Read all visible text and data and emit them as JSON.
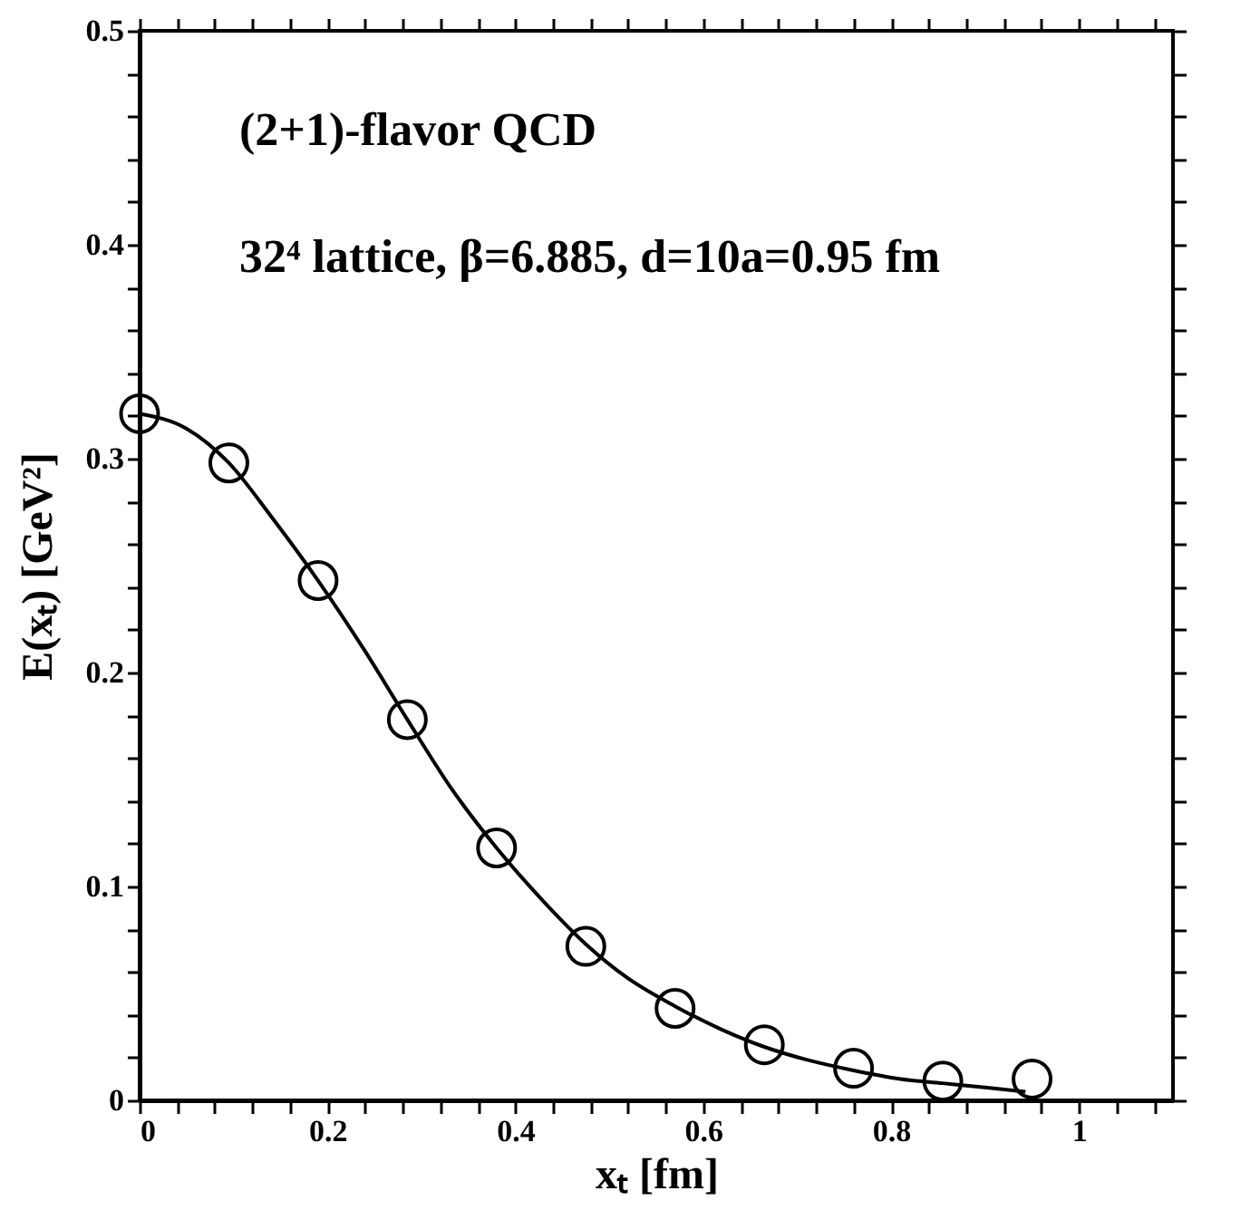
{
  "chart_data": {
    "type": "scatter",
    "xlabel": "xₜ [fm]",
    "ylabel": "E(xₜ) [GeV²]",
    "annotations": [
      "(2+1)-flavor QCD",
      "32⁴ lattice, β=6.885, d=10a=0.95 fm"
    ],
    "xlim": [
      0,
      1.1
    ],
    "ylim": [
      0,
      0.5
    ],
    "xticks": [
      0,
      {
        "value": 0.04,
        "label": null
      },
      {
        "value": 0.08,
        "label": null
      },
      {
        "value": 0.12,
        "label": null
      },
      {
        "value": 0.16,
        "label": null
      },
      0.2,
      {
        "value": 0.24,
        "label": null
      },
      {
        "value": 0.28,
        "label": null
      },
      {
        "value": 0.32,
        "label": null
      },
      {
        "value": 0.36,
        "label": null
      },
      0.4,
      {
        "value": 0.44,
        "label": null
      },
      {
        "value": 0.48,
        "label": null
      },
      {
        "value": 0.52,
        "label": null
      },
      {
        "value": 0.56,
        "label": null
      },
      0.6,
      {
        "value": 0.64,
        "label": null
      },
      {
        "value": 0.68,
        "label": null
      },
      {
        "value": 0.72,
        "label": null
      },
      {
        "value": 0.76,
        "label": null
      },
      0.8,
      {
        "value": 0.84,
        "label": null
      },
      {
        "value": 0.88,
        "label": null
      },
      {
        "value": 0.92,
        "label": null
      },
      {
        "value": 0.96,
        "label": null
      },
      1,
      {
        "value": 1.04,
        "label": null
      },
      {
        "value": 1.08,
        "label": null
      }
    ],
    "yticks": [
      0,
      {
        "value": 0.02,
        "label": null
      },
      {
        "value": 0.04,
        "label": null
      },
      {
        "value": 0.06,
        "label": null
      },
      {
        "value": 0.08,
        "label": null
      },
      0.1,
      {
        "value": 0.12,
        "label": null
      },
      {
        "value": 0.14,
        "label": null
      },
      {
        "value": 0.16,
        "label": null
      },
      {
        "value": 0.18,
        "label": null
      },
      0.2,
      {
        "value": 0.22,
        "label": null
      },
      {
        "value": 0.24,
        "label": null
      },
      {
        "value": 0.26,
        "label": null
      },
      {
        "value": 0.28,
        "label": null
      },
      0.3,
      {
        "value": 0.32,
        "label": null
      },
      {
        "value": 0.34,
        "label": null
      },
      {
        "value": 0.36,
        "label": null
      },
      {
        "value": 0.38,
        "label": null
      },
      0.4,
      {
        "value": 0.42,
        "label": null
      },
      {
        "value": 0.44,
        "label": null
      },
      {
        "value": 0.46,
        "label": null
      },
      {
        "value": 0.48,
        "label": null
      },
      0.5
    ],
    "grid": false,
    "legend": false,
    "series": [
      {
        "color": "#000000",
        "marker": "circle",
        "x": [
          0,
          0.095,
          0.19,
          0.285,
          0.38,
          0.475,
          0.57,
          0.665,
          0.76,
          0.855,
          0.95
        ],
        "values": [
          0.321,
          0.298,
          0.243,
          0.178,
          0.118,
          0.072,
          0.043,
          0.026,
          0.015,
          0.009,
          0.01
        ]
      },
      {
        "type": "line",
        "color": "#000000",
        "marker": "none",
        "line_style": "solid",
        "x": [
          0,
          0.05,
          0.095,
          0.14,
          0.19,
          0.24,
          0.285,
          0.33,
          0.38,
          0.43,
          0.475,
          0.52,
          0.57,
          0.62,
          0.665,
          0.71,
          0.76,
          0.81,
          0.855,
          0.9,
          0.943
        ],
        "values": [
          0.321,
          0.314,
          0.298,
          0.273,
          0.243,
          0.21,
          0.178,
          0.147,
          0.118,
          0.093,
          0.073,
          0.057,
          0.044,
          0.033,
          0.025,
          0.019,
          0.014,
          0.01,
          0.008,
          0.006,
          0.004
        ]
      }
    ]
  }
}
